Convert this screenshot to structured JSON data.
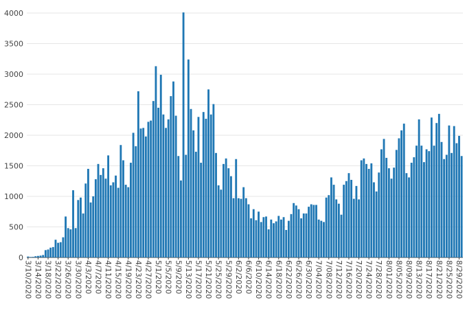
{
  "chart_data": {
    "type": "bar",
    "title": "",
    "xlabel": "",
    "ylabel": "",
    "ylim": [
      0,
      4000
    ],
    "yticks": [
      0,
      500,
      1000,
      1500,
      2000,
      2500,
      3000,
      3500,
      4000
    ],
    "bar_color": "#1f77b4",
    "grid": true,
    "start_date": "2020-03-10",
    "xtick_labels": [
      "3/10/2020",
      "3/14/2020",
      "3/18/2020",
      "3/22/2020",
      "3/26/2020",
      "3/30/2020",
      "4/3/2020",
      "4/7/2020",
      "4/11/2020",
      "4/15/2020",
      "4/19/2020",
      "4/23/2020",
      "4/27/2020",
      "5/1/2020",
      "5/5/2020",
      "5/9/2020",
      "5/13/2020",
      "5/17/2020",
      "5/21/2020",
      "5/25/2020",
      "5/29/2020",
      "6/2/2020",
      "6/6/2020",
      "6/10/2020",
      "6/14/2020",
      "6/18/2020",
      "6/22/2020",
      "6/26/2020",
      "6/30/2020",
      "7/04/2020",
      "7/08/2020",
      "7/12/2020",
      "7/16/2020",
      "7/20/2020",
      "7/24/2020",
      "7/28/2020",
      "8/01/2020",
      "8/05/2020",
      "8/09/2020",
      "8/13/2020",
      "8/17/2020",
      "8/21/2020",
      "8/25/2020",
      "8/29/2020"
    ],
    "values": [
      15,
      8,
      10,
      20,
      25,
      30,
      40,
      120,
      130,
      160,
      170,
      290,
      240,
      250,
      330,
      670,
      480,
      460,
      1100,
      480,
      940,
      980,
      720,
      1210,
      1450,
      900,
      1000,
      1280,
      1530,
      1350,
      1460,
      1290,
      1670,
      1180,
      1230,
      1340,
      1140,
      1840,
      1590,
      1190,
      1150,
      1550,
      2040,
      1820,
      2720,
      2110,
      2120,
      1980,
      2220,
      2240,
      2560,
      3130,
      2450,
      2990,
      2340,
      2120,
      2260,
      2640,
      2880,
      2320,
      1660,
      1260,
      4010,
      1680,
      3240,
      2430,
      2080,
      1730,
      2300,
      1550,
      2380,
      2270,
      2750,
      2340,
      2510,
      1710,
      1180,
      1110,
      1530,
      1620,
      1460,
      1330,
      970,
      1610,
      970,
      960,
      1150,
      970,
      870,
      640,
      790,
      610,
      750,
      580,
      660,
      670,
      460,
      620,
      560,
      590,
      680,
      620,
      660,
      450,
      600,
      710,
      890,
      850,
      790,
      640,
      720,
      720,
      830,
      870,
      860,
      860,
      620,
      600,
      580,
      980,
      1020,
      1310,
      1190,
      950,
      880,
      700,
      1190,
      1250,
      1380,
      1270,
      960,
      1170,
      950,
      1590,
      1620,
      1530,
      1450,
      1540,
      1230,
      1080,
      1390,
      1770,
      1940,
      1630,
      1460,
      1290,
      1470,
      1760,
      1950,
      2080,
      2190,
      1380,
      1310,
      1550,
      1640,
      1830,
      2260,
      1830,
      1560,
      1770,
      1740,
      2290,
      1830,
      2200,
      2350,
      1890,
      1610,
      1680,
      2160,
      1710,
      2150,
      1870,
      1990,
      1660
    ]
  }
}
